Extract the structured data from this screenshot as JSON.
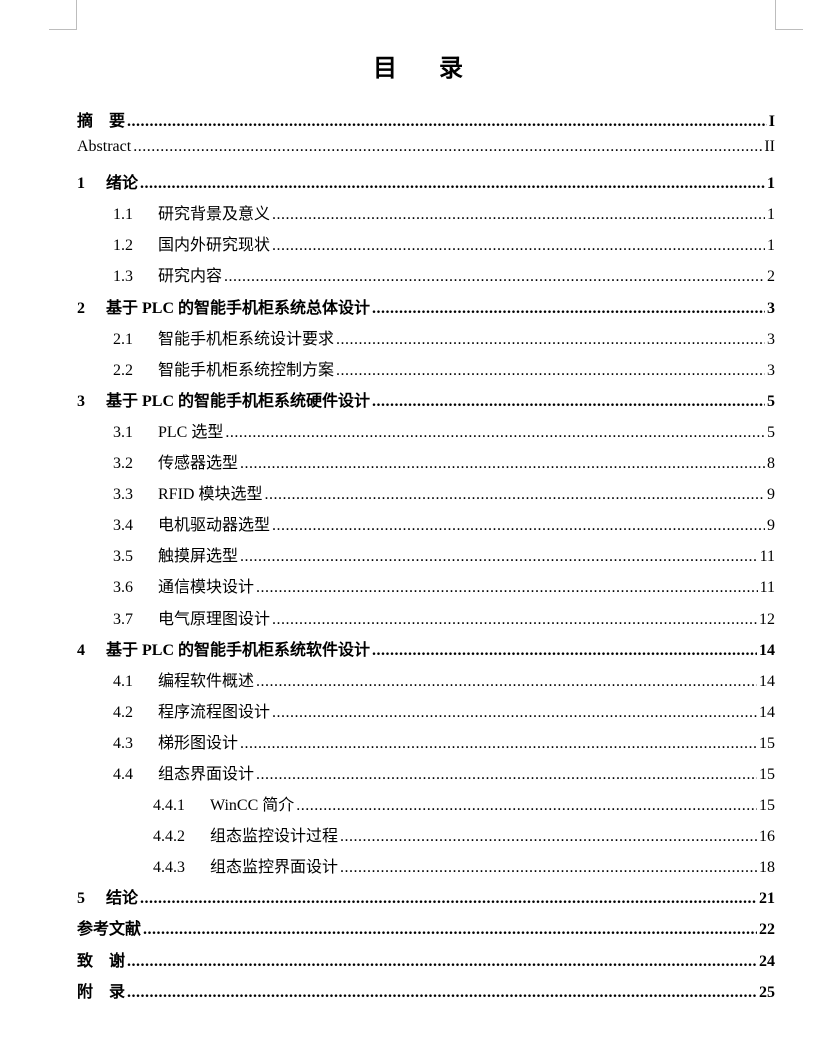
{
  "title": "目 录",
  "entries": [
    {
      "level": 1,
      "num": "",
      "text": "摘　要",
      "page": "I",
      "bold": true
    },
    {
      "level": 1,
      "num": "",
      "text": "Abstract",
      "page": "II",
      "bold": false
    },
    {
      "level": 1,
      "num": "1",
      "text": "绪论",
      "page": "1",
      "bold": true
    },
    {
      "level": 2,
      "num": "1.1",
      "text": "研究背景及意义",
      "page": "1"
    },
    {
      "level": 2,
      "num": "1.2",
      "text": "国内外研究现状",
      "page": "1"
    },
    {
      "level": 2,
      "num": "1.3",
      "text": "研究内容",
      "page": "2"
    },
    {
      "level": 1,
      "num": "2",
      "text": "基于 PLC 的智能手机柜系统总体设计",
      "page": "3",
      "bold": true
    },
    {
      "level": 2,
      "num": "2.1",
      "text": "智能手机柜系统设计要求",
      "page": "3"
    },
    {
      "level": 2,
      "num": "2.2",
      "text": "智能手机柜系统控制方案",
      "page": "3"
    },
    {
      "level": 1,
      "num": "3",
      "text": "基于 PLC 的智能手机柜系统硬件设计",
      "page": "5",
      "bold": true
    },
    {
      "level": 2,
      "num": "3.1",
      "text": "PLC 选型",
      "page": "5"
    },
    {
      "level": 2,
      "num": "3.2",
      "text": "传感器选型",
      "page": "8"
    },
    {
      "level": 2,
      "num": "3.3",
      "text": "RFID 模块选型",
      "page": "9"
    },
    {
      "level": 2,
      "num": "3.4",
      "text": "电机驱动器选型",
      "page": "9"
    },
    {
      "level": 2,
      "num": "3.5",
      "text": "触摸屏选型",
      "page": "11"
    },
    {
      "level": 2,
      "num": "3.6",
      "text": "通信模块设计",
      "page": "11"
    },
    {
      "level": 2,
      "num": "3.7",
      "text": "电气原理图设计",
      "page": "12"
    },
    {
      "level": 1,
      "num": "4",
      "text": "基于 PLC 的智能手机柜系统软件设计",
      "page": "14",
      "bold": true
    },
    {
      "level": 2,
      "num": "4.1",
      "text": "编程软件概述",
      "page": "14"
    },
    {
      "level": 2,
      "num": "4.2",
      "text": "程序流程图设计",
      "page": "14"
    },
    {
      "level": 2,
      "num": "4.3",
      "text": "梯形图设计",
      "page": "15"
    },
    {
      "level": 2,
      "num": "4.4",
      "text": "组态界面设计",
      "page": "15"
    },
    {
      "level": 3,
      "num": "4.4.1",
      "text": "WinCC 简介",
      "page": "15"
    },
    {
      "level": 3,
      "num": "4.4.2",
      "text": "组态监控设计过程",
      "page": "16"
    },
    {
      "level": 3,
      "num": "4.4.3",
      "text": "组态监控界面设计",
      "page": "18"
    },
    {
      "level": 1,
      "num": "5",
      "text": "结论",
      "page": "21",
      "bold": true
    },
    {
      "level": 1,
      "num": "",
      "text": "参考文献",
      "page": "22",
      "bold": true
    },
    {
      "level": 1,
      "num": "",
      "text": "致　谢",
      "page": "24",
      "bold": true
    },
    {
      "level": 1,
      "num": "",
      "text": "附　录",
      "page": "25",
      "bold": true
    }
  ]
}
